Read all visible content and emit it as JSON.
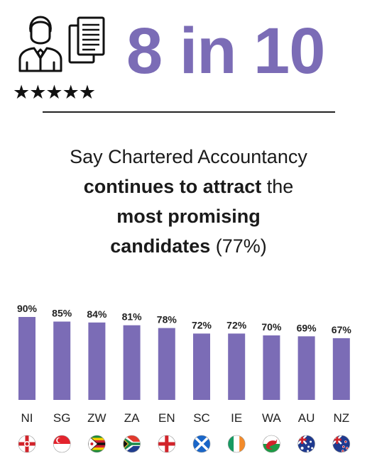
{
  "header": {
    "headline": "8 in 10",
    "stars": "★★★★★",
    "icons": [
      "person-icon",
      "document-icon",
      "star-icon"
    ]
  },
  "statement": {
    "line1": "Say Chartered Accountancy",
    "line2_bold": "continues to attract",
    "line2_rest": " the",
    "line3_bold": "most promising",
    "line4_bold": "candidates",
    "line4_rest": " (77%)"
  },
  "colors": {
    "accent": "#7b6cb6"
  },
  "chart_data": {
    "type": "bar",
    "categories": [
      "NI",
      "SG",
      "ZW",
      "ZA",
      "EN",
      "SC",
      "IE",
      "WA",
      "AU",
      "NZ"
    ],
    "values": [
      90,
      85,
      84,
      81,
      78,
      72,
      72,
      70,
      69,
      67
    ],
    "value_labels": [
      "90%",
      "85%",
      "84%",
      "81%",
      "78%",
      "72%",
      "72%",
      "70%",
      "69%",
      "67%"
    ],
    "flags": [
      "northern-ireland-flag-icon",
      "singapore-flag-icon",
      "zimbabwe-flag-icon",
      "south-africa-flag-icon",
      "england-flag-icon",
      "scotland-flag-icon",
      "ireland-flag-icon",
      "wales-flag-icon",
      "australia-flag-icon",
      "new-zealand-flag-icon"
    ],
    "ylim": [
      0,
      100
    ],
    "grid": false,
    "legend": "none"
  }
}
